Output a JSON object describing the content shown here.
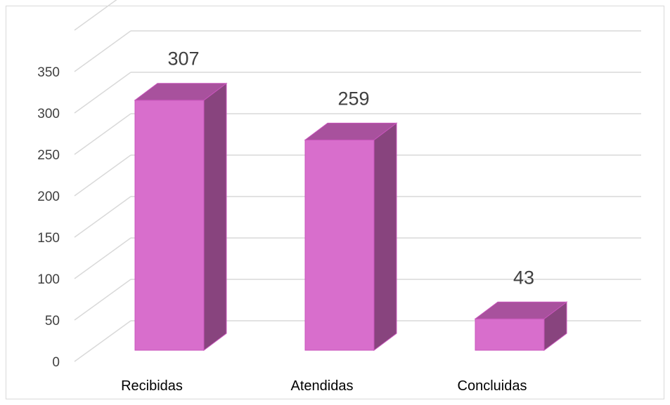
{
  "chart_data": {
    "type": "bar",
    "style": "3d-column",
    "categories": [
      "Recibidas",
      "Atendidas",
      "Concluidas"
    ],
    "values": [
      307,
      259,
      43
    ],
    "data_labels": [
      "307",
      "259",
      "43"
    ],
    "y_ticks": [
      "0",
      "50",
      "100",
      "150",
      "200",
      "250",
      "300",
      "350"
    ],
    "ylim": [
      0,
      350
    ],
    "grid": true,
    "legend": "none",
    "colors": {
      "bar_front": "#D86ECC",
      "bar_top": "#A8519D",
      "bar_side": "#88447E",
      "bar_edge": "#C855BB",
      "gridline": "#d9d9d9",
      "tick_text": "#404040",
      "category_text": "#000000"
    }
  }
}
